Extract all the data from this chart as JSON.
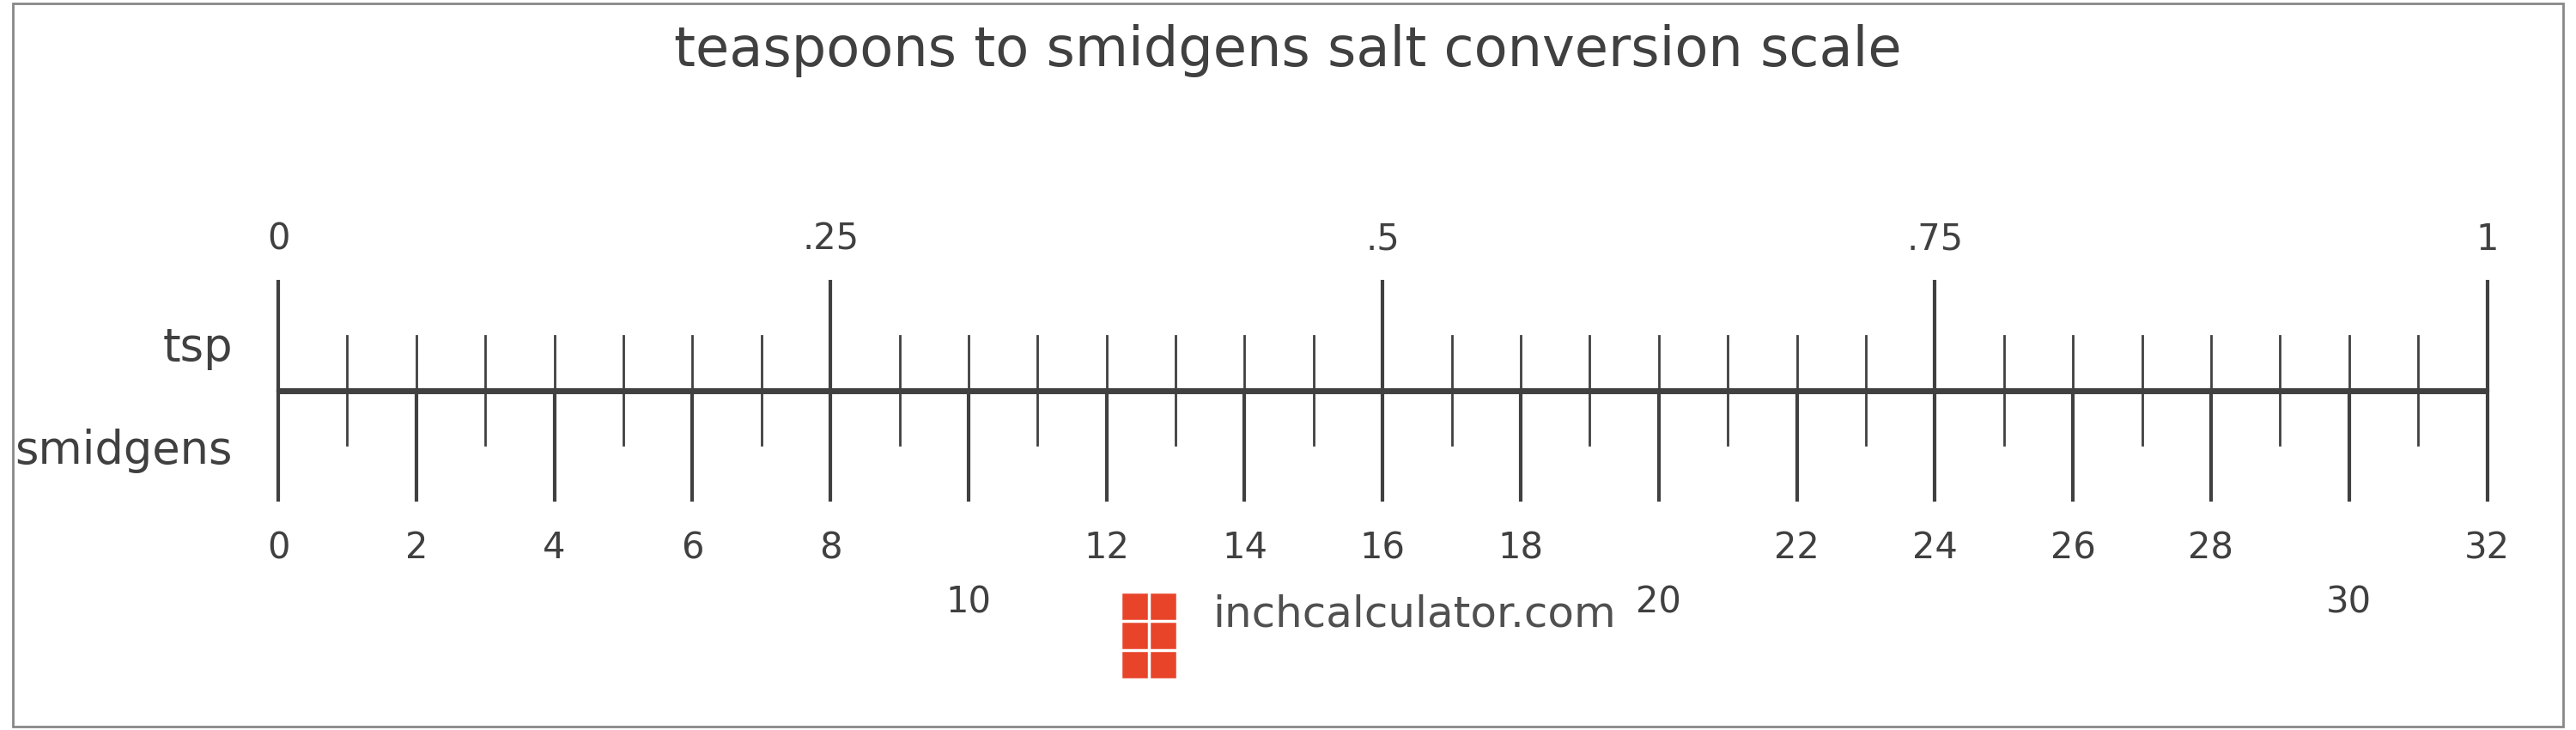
{
  "title": "teaspoons to smidgens salt conversion scale",
  "title_fontsize": 46,
  "background_color": "#ffffff",
  "border_color": "#888888",
  "scale_color": "#404040",
  "tsp_label": "tsp",
  "smidgens_label": "smidgens",
  "tsp_major_labels": [
    "0",
    ".25",
    ".5",
    ".75",
    "1"
  ],
  "tsp_major_smidgens": [
    0,
    8,
    16,
    24,
    32
  ],
  "smidgens_major_ticks": [
    0,
    2,
    4,
    6,
    8,
    10,
    12,
    14,
    16,
    18,
    20,
    22,
    24,
    26,
    28,
    30,
    32
  ],
  "smidgens_minor_ticks": [
    1,
    3,
    5,
    7,
    9,
    11,
    13,
    15,
    17,
    19,
    21,
    23,
    25,
    27,
    29,
    31
  ],
  "smidgens_lower_labels": [
    10,
    20,
    30
  ],
  "watermark_text": "inchcalculator.com",
  "watermark_color": "#505050",
  "watermark_fontsize": 36,
  "icon_color": "#e8442a",
  "label_fontsize": 38,
  "tick_label_fontsize": 30,
  "axis_linewidth": 5.0,
  "major_tick_linewidth": 3.0,
  "minor_tick_linewidth": 2.0
}
